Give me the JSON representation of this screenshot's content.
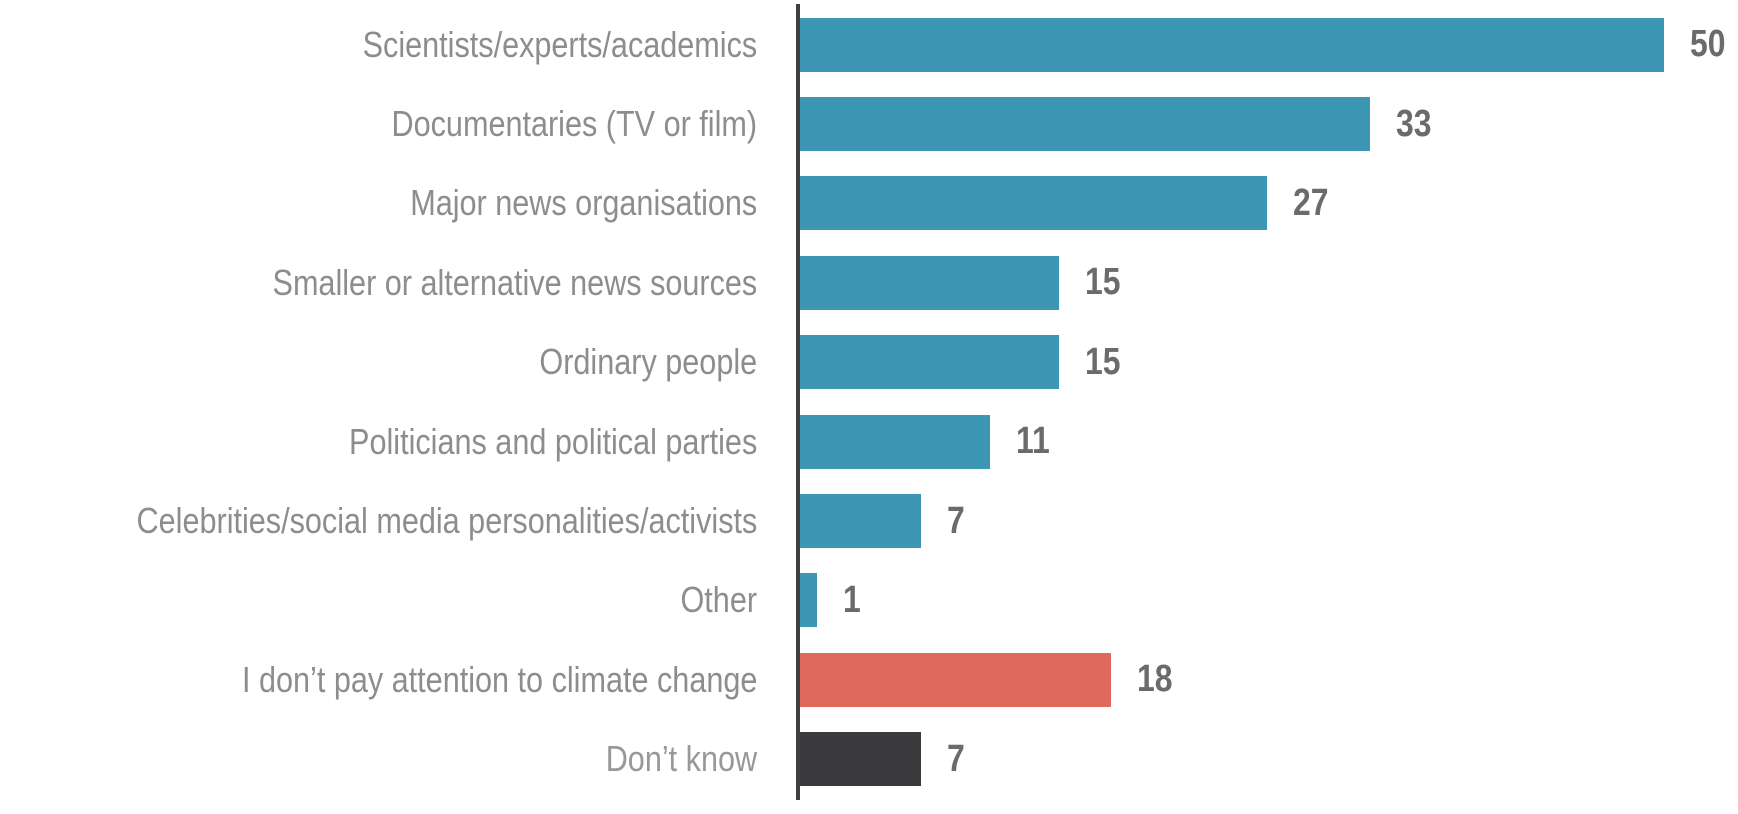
{
  "chart_data": {
    "type": "bar",
    "orientation": "horizontal",
    "title": "",
    "xlabel": "",
    "ylabel": "",
    "xlim": [
      0,
      54
    ],
    "grid": false,
    "legend": false,
    "value_label_position": "end-of-bar",
    "categories": [
      "Scientists/experts/academics",
      "Documentaries (TV or film)",
      "Major news organisations",
      "Smaller or alternative news sources",
      "Ordinary people",
      "Politicians and political parties",
      "Celebrities/social media personalities/activists",
      "Other",
      "I don’t pay attention to climate change",
      "Don’t know"
    ],
    "values": [
      50,
      33,
      27,
      15,
      15,
      11,
      7,
      1,
      18,
      7
    ],
    "bars": [
      {
        "label": "Scientists/experts/academics",
        "value": 50,
        "color": "#3e96b5"
      },
      {
        "label": "Documentaries (TV or film)",
        "value": 33,
        "color": "#3e96b5"
      },
      {
        "label": "Major news organisations",
        "value": 27,
        "color": "#3e96b5"
      },
      {
        "label": "Smaller or alternative news sources",
        "value": 15,
        "color": "#3e96b5"
      },
      {
        "label": "Ordinary people",
        "value": 15,
        "color": "#3e96b5"
      },
      {
        "label": "Politicians and political parties",
        "value": 11,
        "color": "#3e96b5"
      },
      {
        "label": "Celebrities/social media personalities/activists",
        "value": 7,
        "color": "#3e96b5"
      },
      {
        "label": "Other",
        "value": 1,
        "color": "#3e96b5"
      },
      {
        "label": "I don’t pay attention to climate change",
        "value": 18,
        "color": "#df695c"
      },
      {
        "label": "Don’t know",
        "value": 7,
        "color": "#3a3a3c",
        "label_color": "#97989a"
      }
    ],
    "colors": {
      "default_bar": "#3e96b5",
      "highlight_bar": "#df695c",
      "dont_know_bar": "#3a3a3c",
      "axis": "#3e3f41",
      "category_label": "#8b8d8f",
      "dont_know_label": "#97989a",
      "value_label": "#6a6b6d",
      "background": "#ffffff"
    }
  }
}
